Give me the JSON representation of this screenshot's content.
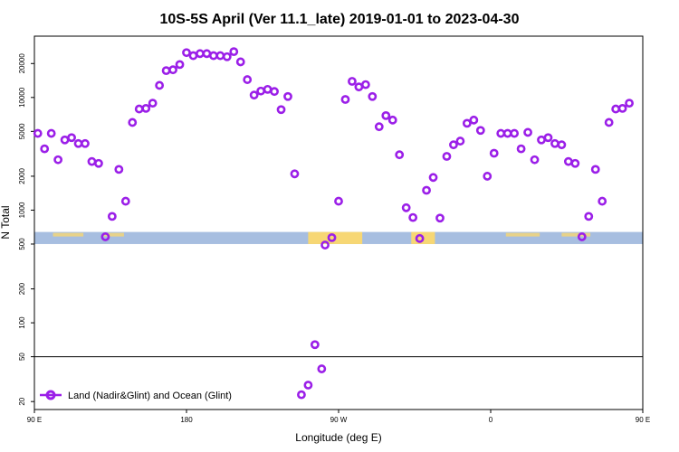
{
  "chart_data": {
    "type": "scatter",
    "title": "10S-5S April (Ver 11.1_late)   2019-01-01 to 2023-04-30",
    "xlabel": "Longitude (deg E)",
    "ylabel": "N Total",
    "x_scale": "longitude",
    "y_scale": "log",
    "xlim": [
      90,
      450
    ],
    "ylim": [
      17,
      35000
    ],
    "x_ticks": [
      {
        "value": 90,
        "label": "90 E"
      },
      {
        "value": 180,
        "label": "180"
      },
      {
        "value": 270,
        "label": "90 W"
      },
      {
        "value": 360,
        "label": "0"
      },
      {
        "value": 450,
        "label": "90 E"
      },
      {
        "value": 540,
        "label": "180"
      }
    ],
    "y_ticks": [
      {
        "value": 20,
        "label": "20"
      },
      {
        "value": 50,
        "label": "50"
      },
      {
        "value": 100,
        "label": "100"
      },
      {
        "value": 200,
        "label": "200"
      },
      {
        "value": 500,
        "label": "500"
      },
      {
        "value": 1000,
        "label": "1000"
      },
      {
        "value": 2000,
        "label": "2000"
      },
      {
        "value": 5000,
        "label": "5000"
      },
      {
        "value": 10000,
        "label": "10000"
      },
      {
        "value": 20000,
        "label": "20000"
      }
    ],
    "reference_line_y": 50,
    "colors": {
      "series": "#9b1fe8",
      "ocean_band": "#a7bee0",
      "land_band": "#f7d774"
    },
    "legend": {
      "position": "bottom-left"
    },
    "series": [
      {
        "name": "Land (Nadir&Glint) and Ocean (Glint)",
        "points": [
          [
            92,
            4800
          ],
          [
            96,
            3500
          ],
          [
            100,
            4800
          ],
          [
            104,
            2800
          ],
          [
            108,
            4200
          ],
          [
            112,
            4400
          ],
          [
            116,
            3900
          ],
          [
            120,
            3900
          ],
          [
            124,
            2700
          ],
          [
            128,
            2600
          ],
          [
            132,
            580
          ],
          [
            136,
            880
          ],
          [
            140,
            2300
          ],
          [
            144,
            1200
          ],
          [
            148,
            6000
          ],
          [
            152,
            7900
          ],
          [
            156,
            8000
          ],
          [
            160,
            8900
          ],
          [
            164,
            12800
          ],
          [
            168,
            17300
          ],
          [
            172,
            17600
          ],
          [
            176,
            19600
          ],
          [
            180,
            25000
          ],
          [
            184,
            23500
          ],
          [
            188,
            24500
          ],
          [
            192,
            24500
          ],
          [
            196,
            23500
          ],
          [
            200,
            23500
          ],
          [
            204,
            23000
          ],
          [
            208,
            25500
          ],
          [
            212,
            20700
          ],
          [
            216,
            14400
          ],
          [
            220,
            10500
          ],
          [
            224,
            11400
          ],
          [
            228,
            11800
          ],
          [
            232,
            11300
          ],
          [
            236,
            7800
          ],
          [
            240,
            10200
          ],
          [
            244,
            2100
          ],
          [
            248,
            23
          ],
          [
            252,
            28
          ],
          [
            256,
            64
          ],
          [
            260,
            39
          ],
          [
            262,
            490
          ],
          [
            266,
            570
          ],
          [
            270,
            1200
          ],
          [
            274,
            9600
          ],
          [
            278,
            13900
          ],
          [
            282,
            12400
          ],
          [
            286,
            13000
          ],
          [
            290,
            10200
          ],
          [
            294,
            5500
          ],
          [
            298,
            6900
          ],
          [
            302,
            6300
          ],
          [
            306,
            3100
          ],
          [
            310,
            1050
          ],
          [
            314,
            860
          ],
          [
            318,
            560
          ],
          [
            322,
            1500
          ],
          [
            326,
            1950
          ],
          [
            330,
            850
          ],
          [
            334,
            3000
          ],
          [
            338,
            3800
          ],
          [
            342,
            4100
          ],
          [
            346,
            5900
          ],
          [
            350,
            6300
          ],
          [
            354,
            5100
          ],
          [
            358,
            2000
          ],
          [
            362,
            3200
          ],
          [
            366,
            4800
          ],
          [
            370,
            4800
          ],
          [
            374,
            4800
          ],
          [
            378,
            3500
          ],
          [
            382,
            4900
          ],
          [
            386,
            2800
          ],
          [
            390,
            4200
          ],
          [
            394,
            4400
          ],
          [
            398,
            3900
          ],
          [
            402,
            3800
          ],
          [
            406,
            2700
          ],
          [
            410,
            2600
          ],
          [
            414,
            580
          ],
          [
            418,
            880
          ],
          [
            422,
            2300
          ],
          [
            426,
            1200
          ],
          [
            430,
            6000
          ],
          [
            434,
            7900
          ],
          [
            438,
            8000
          ],
          [
            442,
            8900
          ]
        ]
      }
    ]
  }
}
